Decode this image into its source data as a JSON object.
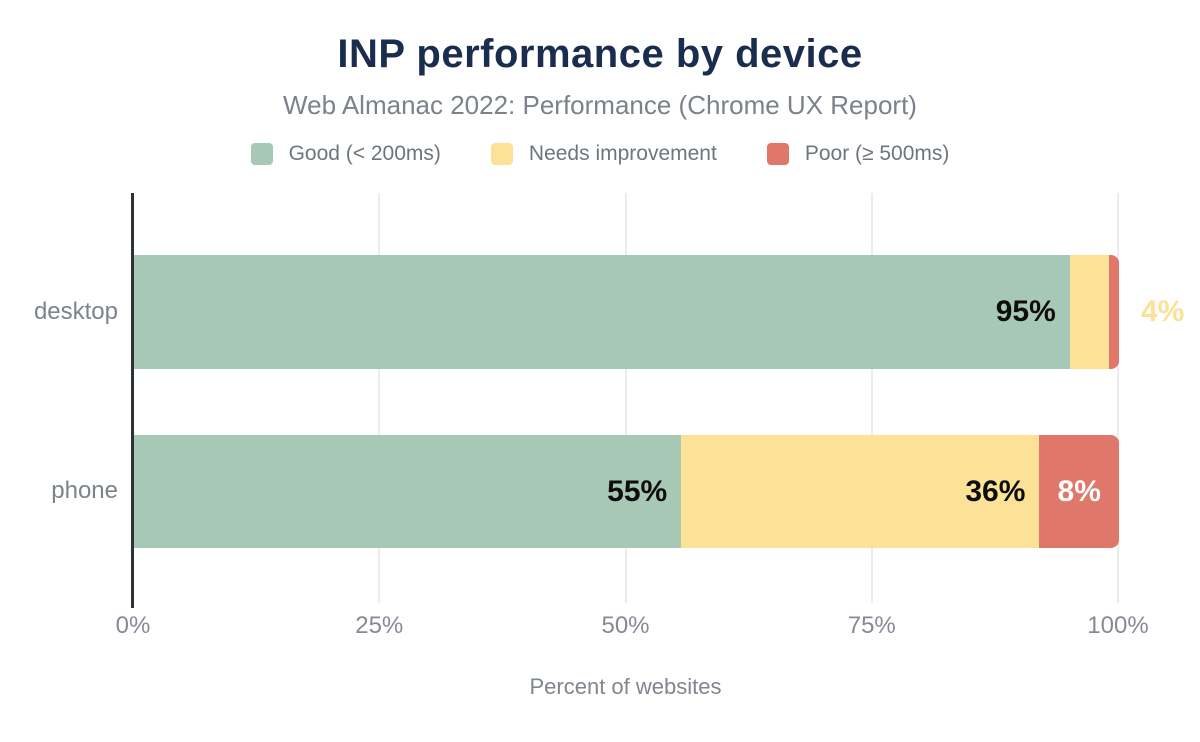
{
  "chart_data": {
    "type": "bar",
    "orientation": "horizontal",
    "stacked": true,
    "title": "INP performance by device",
    "subtitle": "Web Almanac 2022: Performance (Chrome UX Report)",
    "xlabel": "Percent of websites",
    "categories": [
      "desktop",
      "phone"
    ],
    "series": [
      {
        "name": "Good (< 200ms)",
        "color": "#a7c8b5",
        "values": [
          95,
          55
        ]
      },
      {
        "name": "Needs improvement",
        "color": "#fbe297",
        "values": [
          4,
          36
        ]
      },
      {
        "name": "Poor (≥ 500ms)",
        "color": "#e0776b",
        "values": [
          1,
          8
        ]
      }
    ],
    "data_labels": [
      [
        {
          "text": "95%",
          "color": "#0d0d0d",
          "placement": "inside-right"
        },
        {
          "text": "4%",
          "color": "#fbe297",
          "placement": "outside"
        },
        null
      ],
      [
        {
          "text": "55%",
          "color": "#0d0d0d",
          "placement": "inside-right"
        },
        {
          "text": "36%",
          "color": "#0d0d0d",
          "placement": "inside-right"
        },
        {
          "text": "8%",
          "color": "#ffffff",
          "placement": "center"
        }
      ]
    ],
    "xticks": [
      "0%",
      "25%",
      "50%",
      "75%",
      "100%"
    ],
    "xtick_values": [
      0,
      25,
      50,
      75,
      100
    ],
    "xlim": [
      0,
      100
    ],
    "legend_position": "top",
    "grid": "vertical"
  },
  "colors": {
    "title": "#1b2d4f",
    "subtitle": "#7b828b",
    "legend_text": "#6e757e",
    "axis_line": "#2e3236",
    "gridline": "#ececec",
    "tick_text": "#858b94",
    "background": "#ffffff"
  }
}
